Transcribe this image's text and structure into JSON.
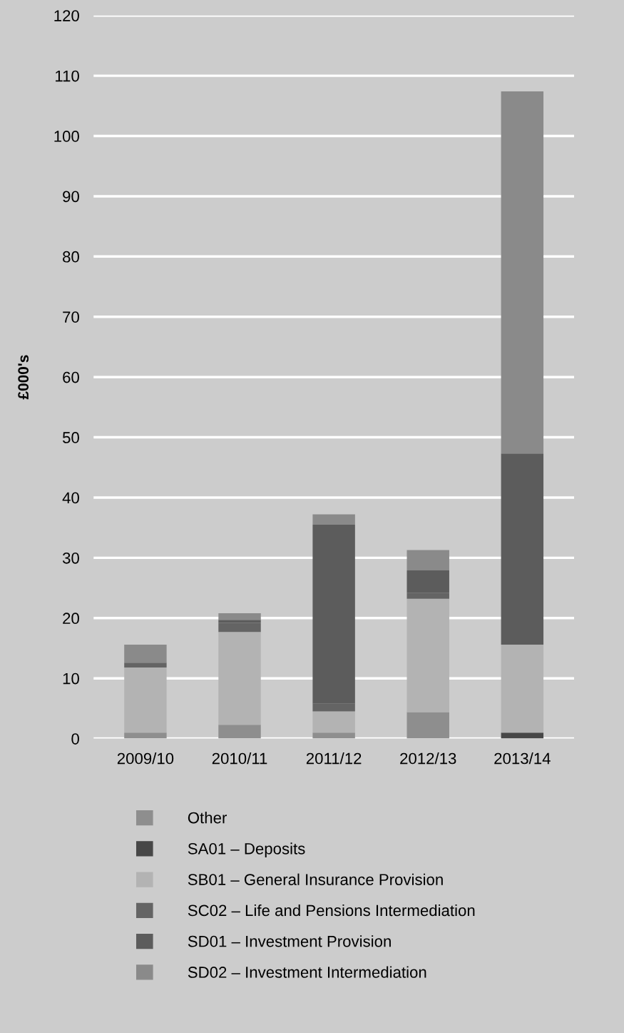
{
  "chart_data": {
    "type": "bar",
    "stacked": true,
    "ylabel": "£000's",
    "categories": [
      "2009/10",
      "2010/11",
      "2011/12",
      "2012/13",
      "2013/14"
    ],
    "series": [
      {
        "name": "Other",
        "color": "#8e8e8e",
        "values": [
          1.0,
          2.3,
          1.0,
          4.4,
          0
        ]
      },
      {
        "name": "SA01 – Deposits",
        "color": "#474747",
        "values": [
          0,
          0,
          0,
          0,
          1.0
        ]
      },
      {
        "name": "SB01 – General Insurance Provision",
        "color": "#b3b3b3",
        "values": [
          10.8,
          15.4,
          3.5,
          18.8,
          14.6
        ]
      },
      {
        "name": "SC02 – Life and Pensions Intermediation",
        "color": "#646464",
        "values": [
          0.8,
          1.5,
          1.3,
          1.0,
          0
        ]
      },
      {
        "name": "SD01 – Investment Provision",
        "color": "#5c5c5c",
        "values": [
          0,
          0.5,
          29.7,
          3.7,
          31.7
        ]
      },
      {
        "name": "SD02 – Investment Intermediation",
        "color": "#8a8a8a",
        "values": [
          3.0,
          1.1,
          1.7,
          3.4,
          60.1
        ]
      }
    ],
    "ylim": [
      0,
      120
    ],
    "yticks": [
      0,
      10,
      20,
      30,
      40,
      50,
      60,
      70,
      80,
      90,
      100,
      110,
      120
    ],
    "grid": "y",
    "legend": "bottom"
  }
}
